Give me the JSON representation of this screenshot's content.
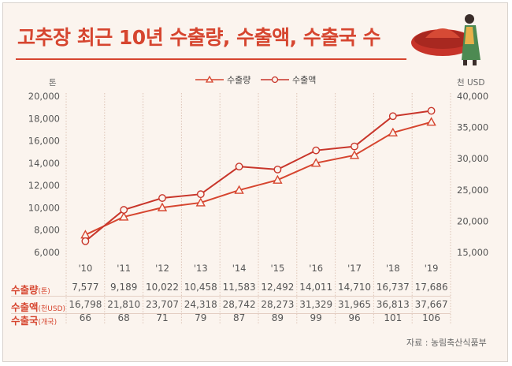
{
  "title": "고추장 최근 10년 수출량, 수출액, 수출국 수",
  "source": "자료 : 농림축산식품부",
  "chart_data": {
    "type": "line",
    "title": "고추장 최근 10년 수출량, 수출액, 수출국 수",
    "x": [
      "'10",
      "'11",
      "'12",
      "'13",
      "'14",
      "'15",
      "'16",
      "'17",
      "'18",
      "'19"
    ],
    "left_axis": {
      "unit": "톤",
      "ylim": [
        6000,
        20000
      ],
      "ticks": [
        "6,000",
        "8,000",
        "10,000",
        "12,000",
        "14,000",
        "16,000",
        "18,000",
        "20,000"
      ],
      "tick_values": [
        6000,
        8000,
        10000,
        12000,
        14000,
        16000,
        18000,
        20000
      ]
    },
    "right_axis": {
      "unit": "천 USD",
      "ylim": [
        15000,
        40000
      ],
      "ticks": [
        "15,000",
        "20,000",
        "25,000",
        "30,000",
        "35,000",
        "40,000"
      ],
      "tick_values": [
        15000,
        20000,
        25000,
        30000,
        35000,
        40000
      ]
    },
    "series": [
      {
        "name": "수출량",
        "axis": "left",
        "marker": "triangle",
        "color": "#d6452f",
        "values": [
          7577,
          9189,
          10022,
          10458,
          11583,
          12492,
          14011,
          14710,
          16737,
          17686
        ]
      },
      {
        "name": "수출액",
        "axis": "right",
        "marker": "circle",
        "color": "#c8352a",
        "values": [
          16798,
          21810,
          23707,
          24318,
          28742,
          28273,
          31329,
          31965,
          36813,
          37667
        ]
      }
    ]
  },
  "table": {
    "rows": [
      {
        "label": "수출량",
        "unit": "(톤)",
        "cells": [
          "7,577",
          "9,189",
          "10,022",
          "10,458",
          "11,583",
          "12,492",
          "14,011",
          "14,710",
          "16,737",
          "17,686"
        ]
      },
      {
        "label": "수출액",
        "unit": "(천USD)",
        "cells": [
          "16,798",
          "21,810",
          "23,707",
          "24,318",
          "28,742",
          "28,273",
          "31,329",
          "31,965",
          "36,813",
          "37,667"
        ]
      },
      {
        "label": "수출국",
        "unit": "(개국)",
        "cells": [
          "66",
          "68",
          "71",
          "79",
          "87",
          "89",
          "99",
          "96",
          "101",
          "106"
        ]
      }
    ]
  },
  "colors": {
    "accent": "#d6452f",
    "background": "#fbf4ee"
  }
}
